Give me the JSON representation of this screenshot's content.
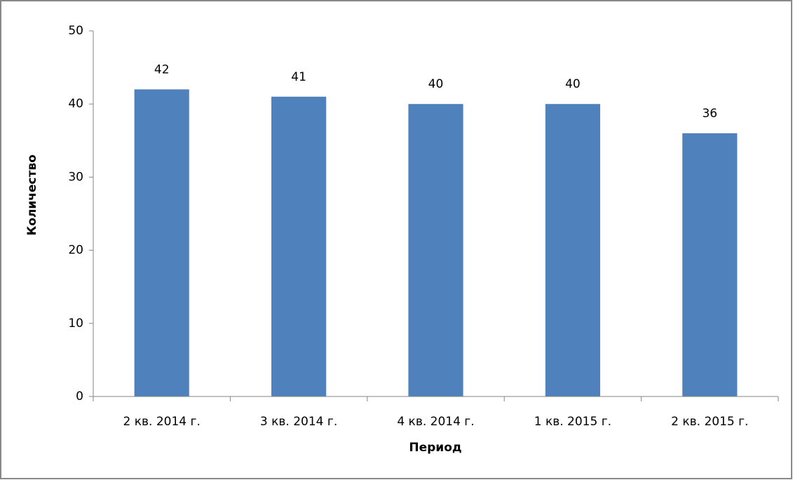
{
  "chart_data": {
    "type": "bar",
    "x_label": "Период",
    "y_label": "Количество",
    "categories": [
      "2 кв. 2014 г.",
      "3 кв. 2014 г.",
      "4 кв. 2014 г.",
      "1 кв. 2015 г.",
      "2 кв. 2015 г."
    ],
    "values": [
      42,
      41,
      40,
      40,
      36
    ],
    "color": "#4f81bd",
    "ylim": [
      0,
      50
    ],
    "yticks": [
      0,
      10,
      20,
      30,
      40,
      50
    ],
    "grid": false
  }
}
